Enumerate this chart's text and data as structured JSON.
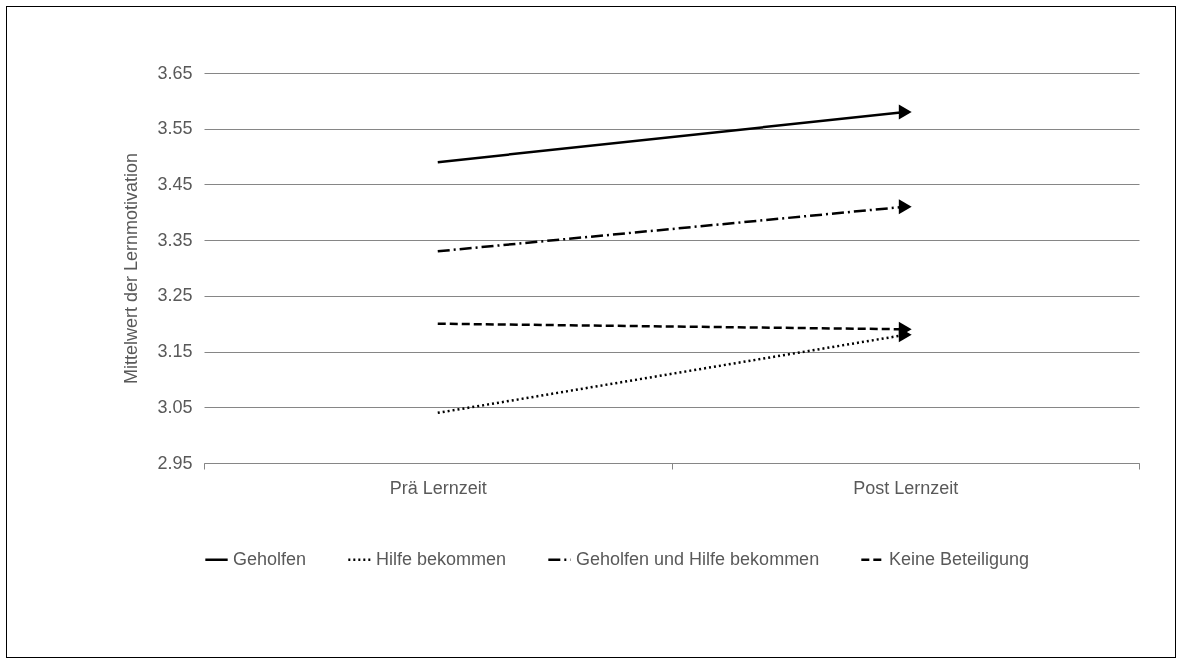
{
  "chart_data": {
    "type": "line",
    "ylabel": "Mittelwert der Lernmotivation",
    "categories": [
      "Prä Lernzeit",
      "Post Lernzeit"
    ],
    "series": [
      {
        "name": "Geholfen",
        "color": "#000000",
        "line_style": "solid",
        "values": [
          3.49,
          3.58
        ]
      },
      {
        "name": "Hilfe bekommen",
        "color": "#000000",
        "line_style": "dotted",
        "values": [
          3.04,
          3.18
        ]
      },
      {
        "name": "Geholfen und Hilfe bekommen",
        "color": "#000000",
        "line_style": "dashdot",
        "values": [
          3.33,
          3.41
        ]
      },
      {
        "name": "Keine Beteiligung",
        "color": "#000000",
        "line_style": "dashed",
        "values": [
          3.2,
          3.19
        ]
      }
    ],
    "ylim": [
      2.95,
      3.65
    ],
    "yticks": [
      2.95,
      3.05,
      3.15,
      3.25,
      3.35,
      3.45,
      3.55,
      3.65
    ],
    "grid": "y",
    "legend": "bottom",
    "marker": "triangle"
  }
}
